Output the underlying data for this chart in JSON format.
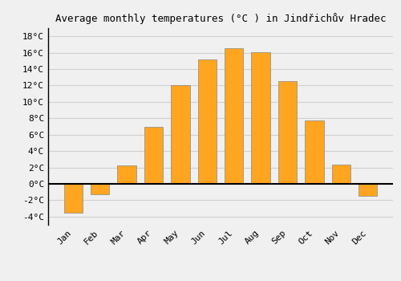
{
  "title": "Average monthly temperatures (°C ) in Jindřichův Hradec",
  "months": [
    "Jan",
    "Feb",
    "Mar",
    "Apr",
    "May",
    "Jun",
    "Jul",
    "Aug",
    "Sep",
    "Oct",
    "Nov",
    "Dec"
  ],
  "values": [
    -3.5,
    -1.3,
    2.2,
    7.0,
    12.0,
    15.2,
    16.6,
    16.1,
    12.5,
    7.7,
    2.3,
    -1.5
  ],
  "bar_color": "#FFA520",
  "bar_edge_color": "#888888",
  "ylim": [
    -5,
    19
  ],
  "yticks": [
    -4,
    -2,
    0,
    2,
    4,
    6,
    8,
    10,
    12,
    14,
    16,
    18
  ],
  "ytick_labels": [
    "-4°C",
    "-2°C",
    "0°C",
    "2°C",
    "4°C",
    "6°C",
    "8°C",
    "10°C",
    "12°C",
    "14°C",
    "16°C",
    "18°C"
  ],
  "grid_color": "#d0d0d0",
  "background_color": "#f0f0f0",
  "title_fontsize": 9,
  "tick_fontsize": 8,
  "zero_line_color": "#000000",
  "bar_width": 0.7,
  "left_spine_color": "#000000"
}
